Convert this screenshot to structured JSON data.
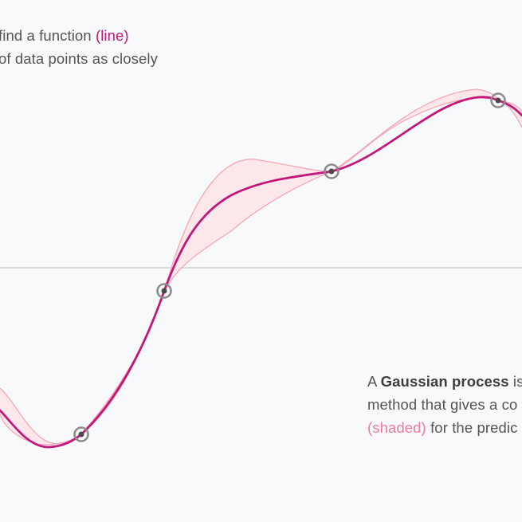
{
  "caption_top": {
    "line1_pre": " find a function ",
    "line1_highlight": "(line)",
    "line2": "of data points as closely"
  },
  "caption_bottom": {
    "line1_pre": "A ",
    "line1_bold": "Gaussian process",
    "line1_post": " is",
    "line2": "method that gives a co",
    "line3_highlight": "(shaded)",
    "line3_post": " for the predic"
  },
  "colors": {
    "background": "#f8f9fa",
    "line": "#c2187a",
    "band_fill": "#fde4e8",
    "band_edge": "#f6a7b8",
    "point": "#555555",
    "axis": "#c8c8c8",
    "text": "#555555"
  }
}
